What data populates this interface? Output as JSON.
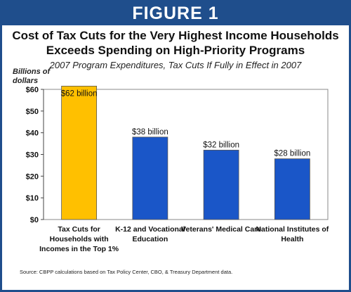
{
  "figure": {
    "banner": "FIGURE 1"
  },
  "chart_data": {
    "type": "bar",
    "title": "Cost of Tax Cuts for the Very Highest Income Households Exceeds Spending on High-Priority Programs",
    "subtitle": "2007 Program Expenditures, Tax Cuts If Fully in Effect in 2007",
    "ylabel": "Billions of dollars",
    "xlabel": "",
    "ylim": [
      0,
      60
    ],
    "yticks": [
      0,
      10,
      20,
      30,
      40,
      50,
      60
    ],
    "ytick_labels": [
      "$0",
      "$10",
      "$20",
      "$30",
      "$40",
      "$50",
      "$60"
    ],
    "categories": [
      "Tax Cuts for Households with Incomes in the Top 1%",
      "K-12 and Vocational Education",
      "Veterans' Medical Care",
      "National Institutes of Health"
    ],
    "category_lines": [
      [
        "Tax Cuts for",
        "Households with",
        "Incomes in the Top 1%"
      ],
      [
        "K-12 and Vocational",
        "Education"
      ],
      [
        "Veterans' Medical Care"
      ],
      [
        "National Institutes of",
        "Health"
      ]
    ],
    "values": [
      62,
      38,
      32,
      28
    ],
    "data_labels": [
      "$62 billion",
      "$38 billion",
      "$32 billion",
      "$28 billion"
    ],
    "bar_colors": [
      "#ffc000",
      "#1a56c8",
      "#1a56c8",
      "#1a56c8"
    ],
    "grid": false,
    "legend": "none"
  },
  "source": "Source:  CBPP calculations based on Tax Policy Center, CBO, & Treasury Department data."
}
